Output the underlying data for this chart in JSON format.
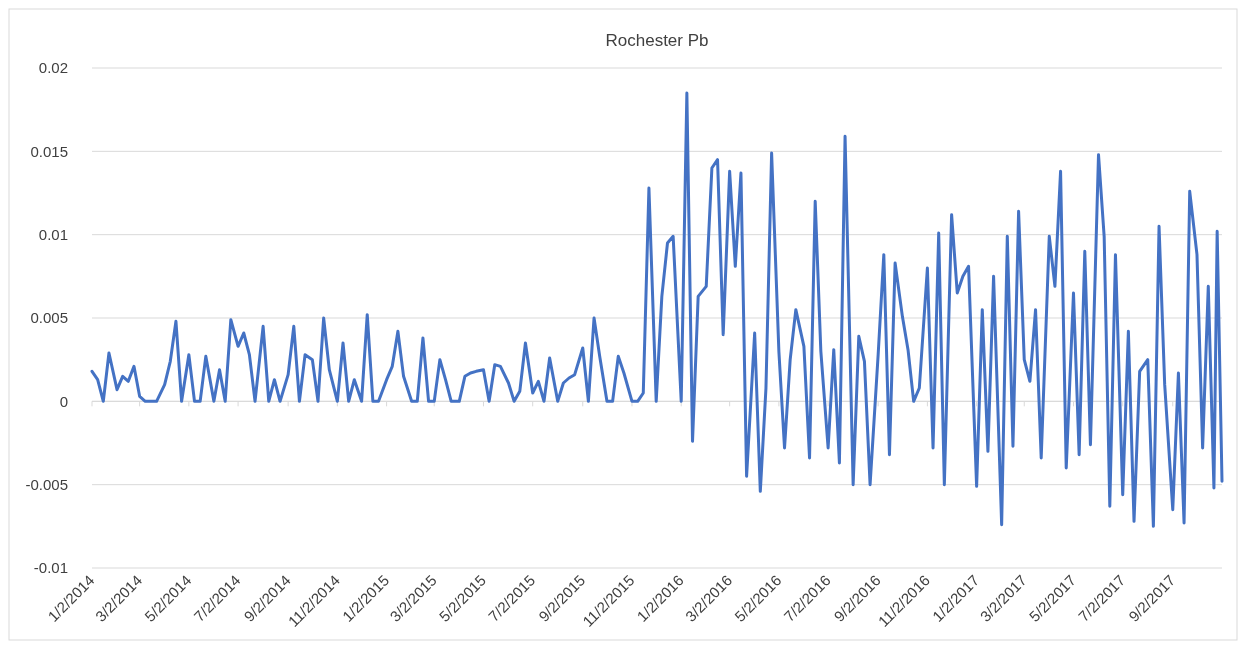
{
  "chart_data": {
    "type": "line",
    "title": "Rochester Pb",
    "x": [
      "2014-01-02",
      "2014-01-09",
      "2014-01-16",
      "2014-01-23",
      "2014-02-02",
      "2014-02-09",
      "2014-02-16",
      "2014-02-23",
      "2014-03-02",
      "2014-03-09",
      "2014-03-16",
      "2014-03-23",
      "2014-04-02",
      "2014-04-09",
      "2014-04-16",
      "2014-04-23",
      "2014-05-02",
      "2014-05-09",
      "2014-05-16",
      "2014-05-23",
      "2014-06-02",
      "2014-06-09",
      "2014-06-16",
      "2014-06-23",
      "2014-07-02",
      "2014-07-09",
      "2014-07-16",
      "2014-07-23",
      "2014-08-02",
      "2014-08-09",
      "2014-08-16",
      "2014-08-23",
      "2014-09-02",
      "2014-09-09",
      "2014-09-16",
      "2014-09-23",
      "2014-10-02",
      "2014-10-09",
      "2014-10-16",
      "2014-10-23",
      "2014-11-02",
      "2014-11-09",
      "2014-11-16",
      "2014-11-23",
      "2014-12-02",
      "2014-12-09",
      "2014-12-16",
      "2014-12-23",
      "2015-01-02",
      "2015-01-09",
      "2015-01-16",
      "2015-01-23",
      "2015-02-02",
      "2015-02-09",
      "2015-02-16",
      "2015-02-23",
      "2015-03-02",
      "2015-03-09",
      "2015-03-16",
      "2015-03-23",
      "2015-04-02",
      "2015-04-09",
      "2015-04-16",
      "2015-04-23",
      "2015-05-02",
      "2015-05-09",
      "2015-05-16",
      "2015-05-23",
      "2015-06-02",
      "2015-06-09",
      "2015-06-16",
      "2015-06-23",
      "2015-07-02",
      "2015-07-09",
      "2015-07-16",
      "2015-07-23",
      "2015-08-02",
      "2015-08-09",
      "2015-08-16",
      "2015-08-23",
      "2015-09-02",
      "2015-09-09",
      "2015-09-16",
      "2015-09-23",
      "2015-10-02",
      "2015-10-09",
      "2015-10-16",
      "2015-10-23",
      "2015-11-02",
      "2015-11-09",
      "2015-11-16",
      "2015-11-23",
      "2015-12-02",
      "2015-12-09",
      "2015-12-16",
      "2015-12-23",
      "2016-01-02",
      "2016-01-09",
      "2016-01-16",
      "2016-01-23",
      "2016-02-02",
      "2016-02-09",
      "2016-02-16",
      "2016-02-23",
      "2016-03-02",
      "2016-03-09",
      "2016-03-16",
      "2016-03-23",
      "2016-04-02",
      "2016-04-09",
      "2016-04-16",
      "2016-04-23",
      "2016-05-02",
      "2016-05-09",
      "2016-05-16",
      "2016-05-23",
      "2016-06-02",
      "2016-06-09",
      "2016-06-16",
      "2016-06-23",
      "2016-07-02",
      "2016-07-09",
      "2016-07-16",
      "2016-07-23",
      "2016-08-02",
      "2016-08-09",
      "2016-08-16",
      "2016-08-23",
      "2016-09-02",
      "2016-09-09",
      "2016-09-16",
      "2016-09-23",
      "2016-10-02",
      "2016-10-09",
      "2016-10-16",
      "2016-10-23",
      "2016-11-02",
      "2016-11-09",
      "2016-11-16",
      "2016-11-23",
      "2016-12-02",
      "2016-12-09",
      "2016-12-16",
      "2016-12-23",
      "2017-01-02",
      "2017-01-09",
      "2017-01-16",
      "2017-01-23",
      "2017-02-02",
      "2017-02-09",
      "2017-02-16",
      "2017-02-23",
      "2017-03-02",
      "2017-03-09",
      "2017-03-16",
      "2017-03-23",
      "2017-04-02",
      "2017-04-09",
      "2017-04-16",
      "2017-04-23",
      "2017-05-02",
      "2017-05-09",
      "2017-05-16",
      "2017-05-23",
      "2017-06-02",
      "2017-06-09",
      "2017-06-16",
      "2017-06-23",
      "2017-07-02",
      "2017-07-09",
      "2017-07-16",
      "2017-07-23",
      "2017-08-02",
      "2017-08-09",
      "2017-08-16",
      "2017-08-23",
      "2017-09-02",
      "2017-09-09",
      "2017-09-16",
      "2017-09-23",
      "2017-10-02",
      "2017-10-09",
      "2017-10-16",
      "2017-10-23",
      "2017-10-27",
      "2017-11-02"
    ],
    "series": [
      {
        "color": "#4472c4",
        "values": [
          0.0018,
          0.0013,
          0,
          0.0029,
          0.0007,
          0.0015,
          0.0012,
          0.0021,
          0.0003,
          0,
          0,
          0,
          0.001,
          0.0024,
          0.0048,
          0,
          0.0028,
          0,
          0,
          0.0027,
          0,
          0.0019,
          0,
          0.0049,
          0.0033,
          0.0041,
          0.0028,
          0,
          0.0045,
          0,
          0.0013,
          0,
          0.0016,
          0.0045,
          0,
          0.0028,
          0.0025,
          0,
          0.005,
          0.0019,
          0,
          0.0035,
          0,
          0.0013,
          0,
          0.0052,
          0,
          0,
          0.0013,
          0.0021,
          0.0042,
          0.0015,
          0,
          0,
          0.0038,
          0,
          0,
          0.0025,
          0.0013,
          0,
          0,
          0.0015,
          0.0017,
          0.0018,
          0.0019,
          0,
          0.0022,
          0.0021,
          0.0011,
          0,
          0.0006,
          0.0035,
          0.0005,
          0.0012,
          0,
          0.0026,
          0,
          0.0011,
          0.0014,
          0.0016,
          0.0032,
          0,
          0.005,
          0.0027,
          0,
          0,
          0.0027,
          0.0017,
          0,
          0,
          0.0005,
          0.0128,
          0,
          0.0063,
          0.0095,
          0.0099,
          0,
          0.0185,
          -0.0024,
          0.0063,
          0.0069,
          0.014,
          0.0145,
          0.004,
          0.0138,
          0.0081,
          0.0137,
          -0.0045,
          0.0041,
          -0.0054,
          0.0008,
          0.0149,
          0.003,
          -0.0028,
          0.0025,
          0.0055,
          0.0033,
          -0.0034,
          0.012,
          0.003,
          -0.0028,
          0.0031,
          -0.0037,
          0.0159,
          -0.005,
          0.0039,
          0.0024,
          -0.005,
          0.0028,
          0.0088,
          -0.0032,
          0.0083,
          0.0051,
          0.0031,
          0,
          0.0008,
          0.008,
          -0.0028,
          0.0101,
          -0.005,
          0.0112,
          0.0065,
          0.0075,
          0.0081,
          -0.0051,
          0.0055,
          -0.003,
          0.0075,
          -0.0074,
          0.0099,
          -0.0027,
          0.0114,
          0.0025,
          0.0012,
          0.0055,
          -0.0034,
          0.0099,
          0.0069,
          0.0138,
          -0.004,
          0.0065,
          -0.0032,
          0.009,
          -0.0026,
          0.0148,
          0.0099,
          -0.0063,
          0.0088,
          -0.0056,
          0.0042,
          -0.0072,
          0.0018,
          0.0025,
          -0.0075,
          0.0105,
          0.001,
          -0.0065,
          0.0017,
          -0.0073,
          0.0126,
          0.0088,
          -0.0028,
          0.0069,
          -0.0052,
          0.0102,
          -0.0048
        ]
      }
    ],
    "xlim": [
      "2014-01-02",
      "2017-11-02"
    ],
    "xticks": [
      {
        "value": "2014-01-02",
        "label": "1/2/2014"
      },
      {
        "value": "2014-03-02",
        "label": "3/2/2014"
      },
      {
        "value": "2014-05-02",
        "label": "5/2/2014"
      },
      {
        "value": "2014-07-02",
        "label": "7/2/2014"
      },
      {
        "value": "2014-09-02",
        "label": "9/2/2014"
      },
      {
        "value": "2014-11-02",
        "label": "11/2/2014"
      },
      {
        "value": "2015-01-02",
        "label": "1/2/2015"
      },
      {
        "value": "2015-03-02",
        "label": "3/2/2015"
      },
      {
        "value": "2015-05-02",
        "label": "5/2/2015"
      },
      {
        "value": "2015-07-02",
        "label": "7/2/2015"
      },
      {
        "value": "2015-09-02",
        "label": "9/2/2015"
      },
      {
        "value": "2015-11-02",
        "label": "11/2/2015"
      },
      {
        "value": "2016-01-02",
        "label": "1/2/2016"
      },
      {
        "value": "2016-03-02",
        "label": "3/2/2016"
      },
      {
        "value": "2016-05-02",
        "label": "5/2/2016"
      },
      {
        "value": "2016-07-02",
        "label": "7/2/2016"
      },
      {
        "value": "2016-09-02",
        "label": "9/2/2016"
      },
      {
        "value": "2016-11-02",
        "label": "11/2/2016"
      },
      {
        "value": "2017-01-02",
        "label": "1/2/2017"
      },
      {
        "value": "2017-03-02",
        "label": "3/2/2017"
      },
      {
        "value": "2017-05-02",
        "label": "5/2/2017"
      },
      {
        "value": "2017-07-02",
        "label": "7/2/2017"
      },
      {
        "value": "2017-09-02",
        "label": "9/2/2017"
      }
    ],
    "ylim": [
      -0.01,
      0.02
    ],
    "yticks": [
      -0.01,
      -0.005,
      0,
      0.005,
      0.01,
      0.015,
      0.02
    ],
    "grid": "y",
    "marker": "none",
    "line_style": "solid"
  }
}
